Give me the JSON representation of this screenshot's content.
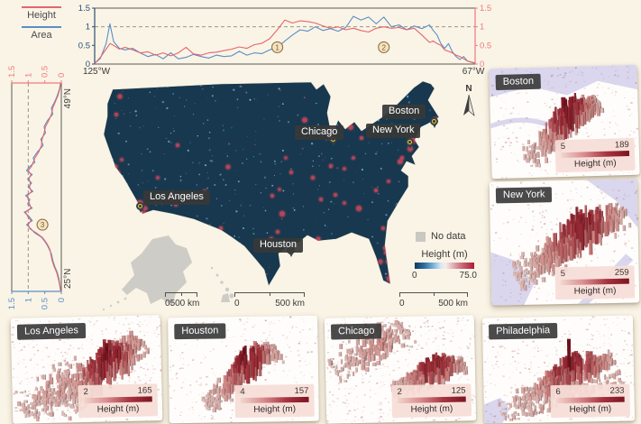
{
  "figure": {
    "background": "#faf4e6"
  },
  "legend": {
    "items": [
      {
        "label": "Height",
        "color": "#e4666d"
      },
      {
        "label": "Area",
        "color": "#5b8ec5"
      }
    ]
  },
  "chart_data": [
    {
      "id": "longitude-profile",
      "type": "line",
      "orientation": "horizontal",
      "x_axis": {
        "left_label": "125°W",
        "right_label": "67°W"
      },
      "ylim": [
        0,
        1.5
      ],
      "yticks": [
        "0",
        "0.5",
        "1",
        "1.5"
      ],
      "reference_line": 1,
      "left_axis_color": "#2a4f75",
      "right_axis_color": "#ee7a80",
      "x": [
        0,
        1.5,
        3,
        4,
        5,
        6.5,
        8,
        10,
        12,
        14,
        16,
        18,
        20,
        22,
        24,
        26,
        28,
        30,
        32,
        34,
        36,
        38,
        40,
        42,
        44,
        46,
        48,
        50,
        52,
        54,
        56,
        58,
        60,
        62,
        64,
        66,
        68,
        70,
        72,
        74,
        76,
        78,
        80,
        82,
        84,
        86,
        88,
        89,
        90,
        91,
        92,
        93,
        94,
        95,
        96,
        97,
        98,
        100
      ],
      "series": [
        {
          "name": "Height",
          "color": "#e4666d",
          "values": [
            0.02,
            0.18,
            0.4,
            0.55,
            0.5,
            0.4,
            0.45,
            0.38,
            0.3,
            0.33,
            0.24,
            0.3,
            0.22,
            0.3,
            0.45,
            0.27,
            0.24,
            0.3,
            0.32,
            0.36,
            0.4,
            0.46,
            0.42,
            0.52,
            0.56,
            0.68,
            0.92,
            1.18,
            1.1,
            1.16,
            1.14,
            1.1,
            1.02,
            0.96,
            1.0,
            0.92,
            0.96,
            0.9,
            0.86,
            0.96,
            1.0,
            0.96,
            0.98,
            0.92,
            0.96,
            0.78,
            0.58,
            0.62,
            0.55,
            0.5,
            0.38,
            0.34,
            0.3,
            0.24,
            0.2,
            0.14,
            0.08,
            0.02
          ]
        },
        {
          "name": "Area",
          "color": "#5b8ec5",
          "values": [
            0.02,
            0.15,
            0.55,
            1.08,
            0.6,
            0.42,
            0.38,
            0.42,
            0.3,
            0.2,
            0.26,
            0.14,
            0.3,
            0.14,
            0.18,
            0.26,
            0.2,
            0.16,
            0.24,
            0.2,
            0.22,
            0.34,
            0.24,
            0.3,
            0.28,
            0.38,
            0.45,
            0.62,
            0.78,
            0.92,
            0.88,
            1.0,
            0.9,
            0.95,
            0.88,
            0.98,
            1.28,
            1.18,
            1.26,
            1.08,
            1.26,
            1.0,
            1.05,
            0.92,
            1.02,
            0.95,
            1.05,
            0.9,
            0.78,
            0.55,
            0.42,
            0.55,
            0.33,
            0.2,
            0.12,
            0.2,
            0.08,
            0.03
          ]
        }
      ],
      "annotations": [
        {
          "label": "1",
          "x": 48,
          "value": 0.45
        },
        {
          "label": "2",
          "x": 76,
          "value": 0.45
        }
      ]
    },
    {
      "id": "latitude-profile",
      "type": "line",
      "orientation": "vertical",
      "y_axis": {
        "top_label": "49°N",
        "bottom_label": "25°N"
      },
      "vlim": [
        0,
        1.5
      ],
      "vticks": [
        "0",
        "0.5",
        "1",
        "1.5"
      ],
      "reference_line": 1,
      "top_axis_color": "#ee7a80",
      "bottom_axis_color": "#5b8ec5",
      "t": [
        0,
        3,
        6,
        9,
        12,
        15,
        18,
        21,
        24,
        27,
        30,
        33,
        36,
        38,
        40,
        42,
        44,
        46,
        48,
        50,
        52,
        54,
        56,
        58,
        60,
        62,
        64,
        66,
        68,
        70,
        72,
        74,
        76,
        78,
        80,
        82,
        85,
        88,
        91,
        94,
        97,
        100
      ],
      "series": [
        {
          "name": "Height",
          "color": "#e4666d",
          "values": [
            0.02,
            0.05,
            0.1,
            0.18,
            0.26,
            0.3,
            0.38,
            0.48,
            0.52,
            0.58,
            0.6,
            0.68,
            0.8,
            0.85,
            0.9,
            1.0,
            0.92,
            0.98,
            0.94,
            0.96,
            0.9,
            1.02,
            1.0,
            0.96,
            0.92,
            1.08,
            1.02,
            0.92,
            1.0,
            0.95,
            0.75,
            0.58,
            0.48,
            0.4,
            0.34,
            0.32,
            0.28,
            0.22,
            0.14,
            0.09,
            0.05,
            0.02
          ]
        },
        {
          "name": "Area",
          "color": "#5b8ec5",
          "values": [
            0.02,
            0.06,
            0.12,
            0.2,
            0.3,
            0.26,
            0.42,
            0.52,
            0.48,
            0.62,
            0.55,
            0.72,
            0.85,
            0.8,
            0.95,
            1.05,
            0.88,
            1.02,
            0.9,
            1.0,
            0.86,
            1.08,
            0.95,
            1.02,
            0.88,
            1.12,
            0.98,
            0.88,
            1.05,
            0.92,
            0.8,
            0.6,
            0.5,
            0.42,
            0.36,
            0.3,
            0.26,
            0.2,
            0.12,
            0.07,
            0.04,
            0.02
          ]
        }
      ],
      "annotations": [
        {
          "label": "3",
          "t": 68,
          "value": 0.57
        }
      ]
    }
  ],
  "map": {
    "map_color": "#17384e",
    "no_data_color": "#cdccc6",
    "no_data_label": "No data",
    "north_label": "N",
    "colorbar": {
      "title": "Height (m)",
      "min": "0",
      "max": "75.0"
    },
    "scalebars": [
      {
        "zero": "0",
        "label": "500 km"
      },
      {
        "zero": "0",
        "label": "500 km"
      },
      {
        "zero": "0",
        "label": "500 km"
      }
    ],
    "cities": [
      {
        "name": "Boston",
        "pin": [
          481,
          134
        ],
        "label": [
          424,
          116
        ]
      },
      {
        "name": "New York",
        "pin": [
          454,
          157
        ],
        "label": [
          406,
          137
        ]
      },
      {
        "name": "Chicago",
        "pin": [
          369,
          154
        ],
        "label": [
          327,
          139
        ]
      },
      {
        "name": "Los Angeles",
        "pin": [
          155,
          228
        ],
        "label": [
          159,
          211
        ]
      },
      {
        "name": "Houston",
        "pin": [
          322,
          277
        ],
        "label": [
          281,
          264
        ]
      }
    ]
  },
  "panels": [
    {
      "name": "Boston",
      "min": "5",
      "max": "189",
      "legend_title": "Height (m)",
      "water": "coast-top"
    },
    {
      "name": "New York",
      "min": "5",
      "max": "259",
      "legend_title": "Height (m)",
      "water": "harbor"
    },
    {
      "name": "Los Angeles",
      "min": "2",
      "max": "165",
      "legend_title": "Height (m)",
      "water": "none"
    },
    {
      "name": "Houston",
      "min": "4",
      "max": "157",
      "legend_title": "Height (m)",
      "water": "none"
    },
    {
      "name": "Chicago",
      "min": "2",
      "max": "125",
      "legend_title": "Height (m)",
      "water": "none"
    },
    {
      "name": "Philadelphia",
      "min": "6",
      "max": "233",
      "legend_title": "Height (m)",
      "water": "river"
    }
  ]
}
